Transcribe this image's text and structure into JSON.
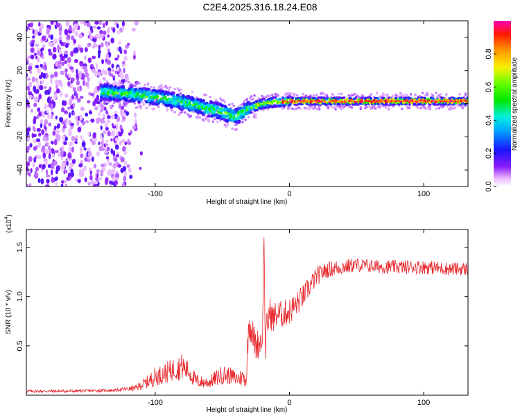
{
  "title": "C2E4.2025.316.18.24.E08",
  "colors": {
    "line": "#e8262b",
    "frame": "#000000"
  },
  "chart_data": [
    {
      "type": "heatmap",
      "name": "spectrogram",
      "xlabel": "Height of straight line (km)",
      "ylabel": "Frequency (Hz)",
      "xlim": [
        -196,
        133
      ],
      "ylim": [
        -50,
        50
      ],
      "xticks": [
        -100,
        0,
        100
      ],
      "yticks": [
        -40,
        -20,
        0,
        20,
        40
      ],
      "ridge_x": [
        -140,
        -120,
        -100,
        -80,
        -60,
        -50,
        -40,
        -30,
        -20,
        -10,
        0,
        20,
        40,
        60,
        80,
        100,
        120,
        130
      ],
      "ridge_y": [
        7,
        6,
        4,
        1,
        -3,
        -5,
        -8,
        -3,
        0,
        1,
        1.5,
        1.5,
        1.5,
        1.5,
        1.5,
        1.5,
        1.5,
        1.5
      ],
      "noise_region_x": [
        -196,
        -110
      ],
      "colorbar": {
        "label": "Normalized spectral amplitude",
        "range": [
          0,
          1
        ],
        "ticks": [
          "0.0",
          "0.2",
          "0.4",
          "0.6",
          "0.8"
        ],
        "tick_values": [
          0.0,
          0.2,
          0.4,
          0.6,
          0.8
        ]
      }
    },
    {
      "type": "line",
      "name": "snr",
      "xlabel": "Height of straight line (km)",
      "ylabel": "SNR (10 * v/v)",
      "scale_label": "(x10",
      "scale_exp": "4",
      "scale_close": ")",
      "xlim": [
        -196,
        133
      ],
      "ylim": [
        0,
        16800
      ],
      "xticks": [
        -100,
        0,
        100
      ],
      "yticks": [
        5000,
        10000,
        15000
      ],
      "ytick_labels": [
        "0.5",
        "1.0",
        "1.5"
      ],
      "x": [
        -196,
        -160,
        -130,
        -115,
        -105,
        -100,
        -95,
        -85,
        -80,
        -75,
        -70,
        -65,
        -60,
        -55,
        -50,
        -45,
        -40,
        -35,
        -32,
        -31,
        -30,
        -28,
        -25,
        -22,
        -20,
        -19,
        -18,
        -17,
        -16,
        -15,
        -12,
        -10,
        -5,
        0,
        5,
        10,
        15,
        20,
        25,
        30,
        40,
        50,
        60,
        70,
        80,
        90,
        100,
        110,
        120,
        133
      ],
      "y": [
        400,
        420,
        500,
        700,
        1400,
        1900,
        2100,
        2700,
        2900,
        2400,
        1500,
        1300,
        1300,
        1700,
        2100,
        2000,
        1700,
        1800,
        1600,
        5500,
        7500,
        6500,
        5000,
        5500,
        6000,
        16800,
        4500,
        6500,
        7500,
        8500,
        7700,
        8200,
        8200,
        8500,
        9200,
        10000,
        11000,
        12000,
        12500,
        12800,
        13000,
        13200,
        13100,
        13000,
        13000,
        13000,
        13000,
        12900,
        12800,
        12800
      ],
      "noise_amplitude": [
        150,
        150,
        150,
        300,
        700,
        1000,
        1000,
        1200,
        1400,
        1000,
        800,
        600,
        600,
        800,
        1000,
        900,
        800,
        900,
        800,
        1500,
        1800,
        1600,
        1500,
        1600,
        1500,
        0,
        1800,
        1800,
        1800,
        1600,
        1500,
        1500,
        1400,
        1400,
        1300,
        1200,
        1100,
        1000,
        900,
        800,
        800,
        700,
        700,
        700,
        700,
        700,
        700,
        700,
        700,
        700
      ]
    }
  ]
}
